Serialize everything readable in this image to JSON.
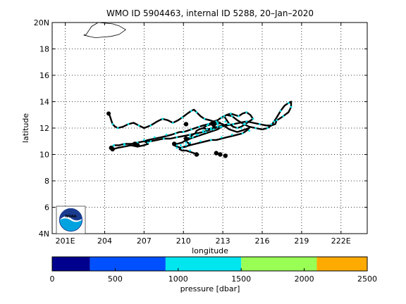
{
  "chart_data": {
    "type": "line",
    "title": "WMO ID 5904463, internal ID 5288, 20–Jan–2020",
    "xlabel": "longitude",
    "ylabel": "latitude",
    "xlim": [
      200,
      224
    ],
    "ylim": [
      4,
      20
    ],
    "grid": true,
    "x_ticks": [
      201,
      204,
      207,
      210,
      213,
      216,
      219,
      222
    ],
    "x_tick_labels": [
      "201E",
      "204",
      "207",
      "210",
      "213",
      "216",
      "219",
      "222E"
    ],
    "y_ticks": [
      4,
      6,
      8,
      10,
      12,
      14,
      16,
      18,
      20
    ],
    "y_tick_labels": [
      "4N",
      "6",
      "8",
      "10",
      "12",
      "14",
      "16",
      "18",
      "20N"
    ],
    "trajectory_color": "#000000",
    "profile_marker_color": "#00e5ee",
    "trajectory": {
      "lon": [
        204.3,
        204.4,
        204.5,
        204.6,
        204.8,
        205.0,
        205.4,
        205.8,
        206.2,
        206.6,
        207.0,
        207.5,
        208.0,
        208.4,
        208.8,
        209.2,
        209.6,
        209.9,
        210.3,
        210.6,
        210.8,
        211.0,
        211.3,
        211.6,
        212.0,
        212.3,
        212.6,
        212.9,
        213.3,
        213.6,
        213.9,
        214.2,
        214.5,
        214.8,
        215.1,
        215.3,
        215.0,
        214.7,
        214.4,
        214.1,
        213.8,
        213.5,
        213.3,
        213.1,
        213.3,
        213.7,
        214.1,
        214.6,
        215.0,
        215.5,
        216.0,
        216.4,
        216.7,
        216.9,
        217.1,
        217.4,
        217.7,
        218.0,
        218.2,
        218.2,
        218.0,
        217.6,
        217.3,
        217.1,
        217.0,
        216.7,
        216.3,
        215.8,
        215.3,
        214.8,
        214.3,
        213.8,
        213.3,
        212.8,
        212.4,
        212.1,
        211.8,
        211.5,
        211.0,
        210.5,
        210.0,
        209.5,
        209.0,
        208.5,
        208.0,
        207.5,
        207.0,
        206.5,
        206.0,
        205.5,
        205.1,
        204.7,
        204.5,
        204.6,
        205.0,
        205.5,
        206.0,
        206.5,
        207.0,
        207.3,
        207.2,
        207.0,
        207.3,
        207.8,
        208.3,
        208.7,
        209.1,
        209.4,
        209.7,
        210.0,
        210.3,
        210.6,
        210.9,
        211.2,
        211.5,
        211.9,
        212.2,
        212.5,
        212.8,
        212.6,
        212.2,
        211.8,
        211.5,
        211.8,
        212.2,
        212.6,
        213.0,
        213.4,
        213.2,
        212.9,
        212.6,
        212.3,
        212.0,
        211.7,
        211.4,
        211.1,
        210.8,
        210.5,
        210.3,
        210.2,
        210.3,
        210.5,
        210.4,
        210.2,
        209.8,
        209.5,
        209.3,
        209.5,
        209.9,
        210.2,
        210.5,
        210.7,
        210.9,
        211.0,
        211.2,
        211.5,
        211.8,
        212.1,
        212.4,
        212.6,
        213.0,
        213.2,
        213.5,
        213.8,
        214.1,
        214.4,
        214.7,
        215.0,
        214.8,
        214.5,
        214.1,
        213.7,
        213.3,
        212.9,
        212.5,
        212.1,
        211.7,
        211.3,
        210.9,
        210.5,
        210.1,
        209.8,
        209.7,
        209.9,
        210.2,
        210.5,
        210.8,
        211.0,
        211.1
      ],
      "lat": [
        13.1,
        12.9,
        12.6,
        12.3,
        12.1,
        12.0,
        12.1,
        12.3,
        12.4,
        12.2,
        12.0,
        12.2,
        12.5,
        12.7,
        12.6,
        12.4,
        12.6,
        12.8,
        13.1,
        13.3,
        13.4,
        13.2,
        12.9,
        12.7,
        12.6,
        12.5,
        12.6,
        12.8,
        13.0,
        13.1,
        13.0,
        12.9,
        13.1,
        13.2,
        13.0,
        12.7,
        12.5,
        12.3,
        12.1,
        12.0,
        12.1,
        12.3,
        12.6,
        12.9,
        13.0,
        12.9,
        12.6,
        12.3,
        12.1,
        12.0,
        11.9,
        12.0,
        12.2,
        12.5,
        12.8,
        13.3,
        13.7,
        13.9,
        14.0,
        13.6,
        13.2,
        12.9,
        12.7,
        12.6,
        12.3,
        12.2,
        12.2,
        12.3,
        12.4,
        12.5,
        12.4,
        12.3,
        12.2,
        12.1,
        12.0,
        11.9,
        11.8,
        11.7,
        11.6,
        11.5,
        11.4,
        11.3,
        11.2,
        11.2,
        11.1,
        11.0,
        11.0,
        10.9,
        10.8,
        10.8,
        10.7,
        10.7,
        10.5,
        10.4,
        10.5,
        10.6,
        10.7,
        10.6,
        10.7,
        10.8,
        10.9,
        11.0,
        11.1,
        11.2,
        11.3,
        11.4,
        11.5,
        11.6,
        11.7,
        11.7,
        11.8,
        11.9,
        12.0,
        12.1,
        12.2,
        12.3,
        12.4,
        12.5,
        12.4,
        12.3,
        12.3,
        12.2,
        12.0,
        11.9,
        12.0,
        12.1,
        12.2,
        12.3,
        12.2,
        12.1,
        11.9,
        11.8,
        11.7,
        11.6,
        11.5,
        11.4,
        11.3,
        11.2,
        11.1,
        11.0,
        10.9,
        10.8,
        10.7,
        10.6,
        10.5,
        10.6,
        10.7,
        10.8,
        10.9,
        11.1,
        11.3,
        11.5,
        11.6,
        11.8,
        11.9,
        12.0,
        12.2,
        12.4,
        12.5,
        12.4,
        12.3,
        12.1,
        11.9,
        11.8,
        11.7,
        11.8,
        11.9,
        12.0,
        11.8,
        11.6,
        11.5,
        11.4,
        11.3,
        11.2,
        11.1,
        11.1,
        11.0,
        10.9,
        10.8,
        10.7,
        10.6,
        10.5,
        10.4,
        10.3,
        10.3,
        10.2,
        10.1,
        10.0,
        9.95,
        9.95
      ]
    },
    "profile_points": {
      "lon": [
        204.3,
        204.6,
        205.0,
        205.8,
        206.6,
        207.5,
        208.4,
        209.2,
        209.9,
        210.6,
        211.0,
        211.6,
        212.3,
        212.9,
        213.6,
        214.2,
        214.8,
        215.3,
        214.7,
        214.1,
        213.5,
        213.1,
        213.7,
        214.6,
        215.5,
        216.4,
        216.9,
        217.4,
        218.0,
        218.2,
        217.6,
        217.1,
        216.7,
        215.8,
        214.8,
        213.8,
        212.8,
        212.1,
        211.5,
        210.5,
        209.5,
        208.5,
        207.5,
        206.5,
        205.5,
        204.7,
        204.6,
        205.5,
        206.5,
        207.3,
        207.0,
        207.8,
        208.7,
        209.4,
        210.0,
        210.6,
        211.2,
        211.9,
        212.5,
        212.6,
        211.8,
        211.8,
        212.6,
        213.4,
        212.9,
        212.3,
        211.7,
        211.1,
        210.5,
        210.2,
        210.5,
        210.2,
        209.5,
        209.5,
        210.2,
        210.7,
        211.0,
        211.5,
        212.1,
        212.6,
        213.2,
        213.8,
        214.4,
        215.0,
        214.5,
        213.7,
        212.9,
        212.1,
        211.3,
        210.5,
        209.8,
        209.9,
        210.5,
        211.0,
        211.1
      ],
      "lat": [
        13.1,
        12.3,
        12.0,
        12.3,
        12.2,
        12.2,
        12.7,
        12.4,
        12.8,
        13.3,
        13.2,
        12.7,
        12.5,
        12.8,
        13.1,
        12.9,
        13.2,
        12.7,
        12.3,
        12.0,
        12.3,
        12.9,
        12.9,
        12.3,
        12.0,
        12.0,
        12.5,
        13.3,
        13.9,
        13.6,
        12.9,
        12.6,
        12.3,
        12.3,
        12.5,
        12.3,
        12.1,
        11.9,
        11.7,
        11.5,
        11.3,
        11.2,
        11.0,
        10.9,
        10.8,
        10.7,
        10.6,
        10.7,
        10.7,
        10.9,
        11.1,
        11.3,
        11.5,
        11.6,
        11.7,
        11.9,
        12.1,
        12.3,
        12.5,
        12.3,
        12.2,
        11.9,
        12.1,
        12.3,
        12.1,
        11.9,
        11.7,
        11.5,
        11.3,
        11.1,
        10.9,
        10.7,
        10.5,
        10.7,
        10.9,
        11.3,
        11.5,
        11.8,
        12.0,
        12.4,
        12.5,
        12.3,
        12.0,
        11.8,
        11.6,
        11.5,
        11.3,
        11.1,
        11.0,
        10.9,
        10.7,
        10.5,
        10.3,
        10.1,
        9.95
      ]
    },
    "dense_points": [
      {
        "lon": 204.5,
        "lat": 10.5
      },
      {
        "lon": 204.6,
        "lat": 10.4
      },
      {
        "lon": 206.3,
        "lat": 10.8
      },
      {
        "lon": 206.5,
        "lat": 10.7
      },
      {
        "lon": 209.3,
        "lat": 10.8
      },
      {
        "lon": 210.2,
        "lat": 11.2
      },
      {
        "lon": 212.3,
        "lat": 12.4
      },
      {
        "lon": 212.3,
        "lat": 12.25
      },
      {
        "lon": 210.2,
        "lat": 12.3
      },
      {
        "lon": 211.0,
        "lat": 10.0
      },
      {
        "lon": 212.5,
        "lat": 10.1
      },
      {
        "lon": 212.8,
        "lat": 10.0
      },
      {
        "lon": 213.2,
        "lat": 9.9
      }
    ],
    "colorbar": {
      "label": "pressure [dbar]",
      "ticks": [
        0,
        500,
        1000,
        1500,
        2000,
        2500
      ],
      "bins": [
        {
          "from": 0,
          "to": 250,
          "color": "#00008f"
        },
        {
          "from": 250,
          "to": 750,
          "color": "#0050ff"
        },
        {
          "from": 750,
          "to": 1250,
          "color": "#00e5ee"
        },
        {
          "from": 1250,
          "to": 1750,
          "color": "#00e5ee"
        },
        {
          "from": 1750,
          "to": 2250,
          "color": "#99ff55"
        },
        {
          "from": 2250,
          "to": 2500,
          "color": "#ffaa00"
        }
      ],
      "segments": [
        {
          "from": 0,
          "to": 300,
          "color": "#00008f"
        },
        {
          "from": 300,
          "to": 900,
          "color": "#0050ff"
        },
        {
          "from": 900,
          "to": 1500,
          "color": "#00e5ee"
        },
        {
          "from": 1500,
          "to": 2100,
          "color": "#99ff55"
        },
        {
          "from": 2100,
          "to": 2500,
          "color": "#ffaa00"
        }
      ]
    },
    "landmass": {
      "lon": [
        202.6,
        203.0,
        203.5,
        204.0,
        204.6,
        205.1,
        205.6,
        205.1,
        204.5,
        203.9,
        203.3,
        202.8,
        202.4,
        202.6
      ],
      "lat": [
        19.1,
        19.7,
        20.0,
        19.95,
        19.9,
        19.75,
        19.45,
        19.1,
        18.95,
        18.9,
        18.85,
        18.95,
        19.05,
        19.1
      ]
    },
    "logo": "noaa-logo"
  }
}
